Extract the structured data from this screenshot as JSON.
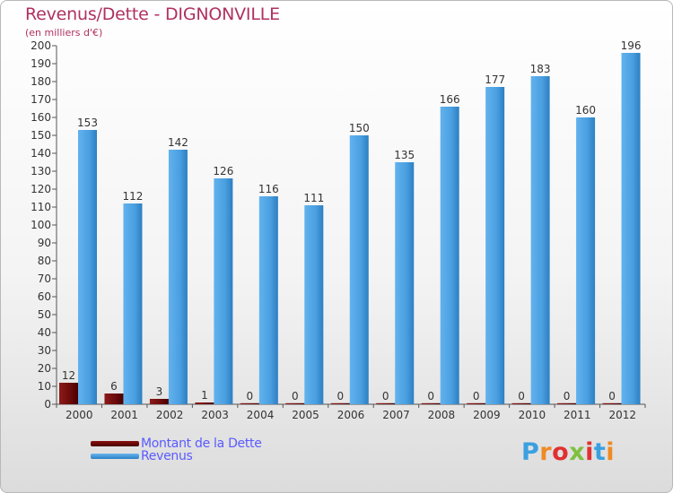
{
  "chart_data": {
    "type": "bar",
    "title": "Revenus/Dette - DIGNONVILLE",
    "subtitle": "(en milliers d'€)",
    "categories": [
      "2000",
      "2001",
      "2002",
      "2003",
      "2004",
      "2005",
      "2006",
      "2007",
      "2008",
      "2009",
      "2010",
      "2011",
      "2012"
    ],
    "series": [
      {
        "name": "Montant de la Dette",
        "color": "#6b0a0a",
        "values": [
          12,
          6,
          3,
          1,
          0,
          0,
          0,
          0,
          0,
          0,
          0,
          0,
          0
        ]
      },
      {
        "name": "Revenus",
        "color": "#4a9fe0",
        "values": [
          153,
          112,
          142,
          126,
          116,
          111,
          150,
          135,
          166,
          177,
          183,
          160,
          196
        ]
      }
    ],
    "ylim": [
      0,
      200
    ],
    "ytick_step": 10,
    "xlabel": "",
    "ylabel": "",
    "grid": false,
    "legend_position": "bottom-left"
  },
  "logo": {
    "text": "Proxiti",
    "letter_colors": [
      "#3aa0e0",
      "#f08a24",
      "#e03030",
      "#7fc040",
      "#e03030",
      "#3aa0e0",
      "#f08a24"
    ]
  }
}
